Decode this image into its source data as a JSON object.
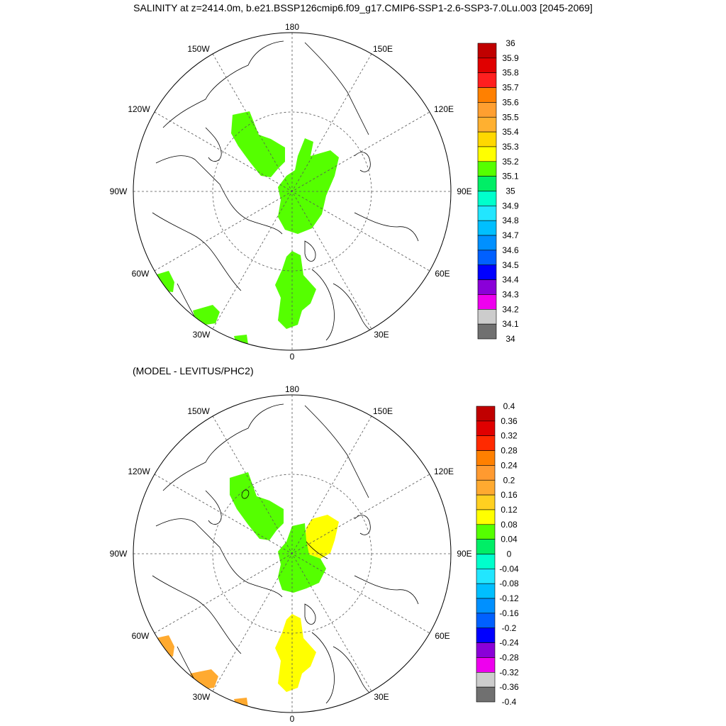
{
  "title": "SALINITY at z=2414.0m, b.e21.BSSP126cmip6.f09_g17.CMIP6-SSP1-2.6-SSP3-7.0Lu.003 [2045-2069]",
  "difference_title": "(MODEL - LEVITUS/PHC2)",
  "longitude_labels": [
    "180",
    "150E",
    "120E",
    "90E",
    "60E",
    "30E",
    "0",
    "30W",
    "60W",
    "90W",
    "120W",
    "150W"
  ],
  "colorbars": {
    "salinity": {
      "labels": [
        "36",
        "35.9",
        "35.8",
        "35.7",
        "35.6",
        "35.5",
        "35.4",
        "35.3",
        "35.2",
        "35.1",
        "35",
        "34.9",
        "34.8",
        "34.7",
        "34.6",
        "34.5",
        "34.4",
        "34.3",
        "34.2",
        "34.1",
        "34"
      ],
      "colors": [
        "#c00000",
        "#e00000",
        "#ff1f1f",
        "#ff8000",
        "#ff9f30",
        "#ffb030",
        "#ffd800",
        "#ffff00",
        "#55ff00",
        "#00ee66",
        "#00ffcc",
        "#22e6ff",
        "#00bfff",
        "#0090ff",
        "#0060ff",
        "#0000ff",
        "#8a00d8",
        "#ee00ee",
        "#cccccc",
        "#707070"
      ]
    },
    "difference": {
      "labels": [
        "0.4",
        "0.36",
        "0.32",
        "0.28",
        "0.24",
        "0.2",
        "0.16",
        "0.12",
        "0.08",
        "0.04",
        "0",
        "-0.04",
        "-0.08",
        "-0.12",
        "-0.16",
        "-0.2",
        "-0.24",
        "-0.28",
        "-0.32",
        "-0.36",
        "-0.4"
      ],
      "colors": [
        "#c00000",
        "#e00000",
        "#ff2a00",
        "#ff8000",
        "#ff9a30",
        "#ffaa30",
        "#ffd020",
        "#ffff00",
        "#55ff00",
        "#00ee66",
        "#00ffcc",
        "#22e6ff",
        "#00bfff",
        "#0090ff",
        "#0060ff",
        "#0000ff",
        "#8a00d8",
        "#ee00ee",
        "#cccccc",
        "#707070"
      ]
    }
  },
  "regions": {
    "top": [
      {
        "name": "canada-basin-patch",
        "color": "#55ff00"
      },
      {
        "name": "eurasian-basin-patch",
        "color": "#55ff00"
      },
      {
        "name": "fram-strait-patch",
        "color": "#55ff00"
      },
      {
        "name": "labrador-patch",
        "color": "#55ff00"
      },
      {
        "name": "greenland-south-patch",
        "color": "#55ff00"
      }
    ],
    "bottom": [
      {
        "name": "canada-basin-patch",
        "color": "#55ff00"
      },
      {
        "name": "makarov-patch",
        "color": "#ffff00"
      },
      {
        "name": "eurasian-basin-patch",
        "color": "#55ff00"
      },
      {
        "name": "fram-strait-patch",
        "color": "#ffff00"
      },
      {
        "name": "labrador-patch",
        "color": "#ffaa30"
      },
      {
        "name": "greenland-south-patch",
        "color": "#ffaa30"
      }
    ]
  }
}
